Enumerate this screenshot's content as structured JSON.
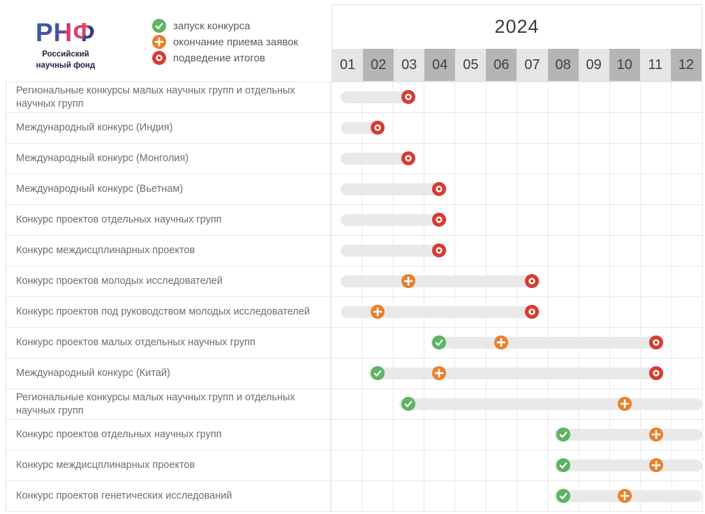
{
  "logo": {
    "letters": [
      "Р",
      "Н",
      "Ф"
    ],
    "org_line1": "Российский",
    "org_line2": "научный фонд"
  },
  "colors": {
    "accent_green": "#5cb464",
    "accent_orange": "#e8802d",
    "accent_red": "#d93a32",
    "bar": "#e9e9e9",
    "month_light": "#e6e6e6",
    "month_dark": "#b5b5b5",
    "grid_line": "#e6e6e6",
    "label_text": "#6e6e6e",
    "header_text": "#3f3f3f",
    "legend_text": "#5a5a5a",
    "logo_text": "#232246"
  },
  "chart_data": {
    "type": "bar",
    "subtype": "gantt-timeline",
    "title": "2024",
    "x_axis": {
      "unit": "month",
      "labels": [
        "01",
        "02",
        "03",
        "04",
        "05",
        "06",
        "07",
        "08",
        "09",
        "10",
        "11",
        "12"
      ],
      "range": [
        0,
        12
      ]
    },
    "legend": [
      {
        "id": "start",
        "label": "запуск конкурса",
        "color": "#5cb464",
        "symbol": "check"
      },
      {
        "id": "deadline",
        "label": "окончание приема заявок",
        "color": "#e8802d",
        "symbol": "plus"
      },
      {
        "id": "results",
        "label": "подведение итогов",
        "color": "#d93a32",
        "symbol": "ring"
      }
    ],
    "layout": {
      "legend_position": "top-left",
      "grid": true,
      "bar_color": "#e9e9e9"
    },
    "rows": [
      {
        "label": "Региональные конкурсы малых научных групп и отдельных научных групп",
        "bar_from": 0.32,
        "bar_to": 2.73,
        "events": [
          {
            "type": "results",
            "month": 3
          }
        ]
      },
      {
        "label": "Международный конкурс (Индия)",
        "bar_from": 0.32,
        "bar_to": 1.73,
        "events": [
          {
            "type": "results",
            "month": 2
          }
        ]
      },
      {
        "label": "Международный конкурс (Монголия)",
        "bar_from": 0.32,
        "bar_to": 2.73,
        "events": [
          {
            "type": "results",
            "month": 3
          }
        ]
      },
      {
        "label": "Международный конкурс (Вьетнам)",
        "bar_from": 0.32,
        "bar_to": 3.75,
        "events": [
          {
            "type": "results",
            "month": 4
          }
        ]
      },
      {
        "label": "Конкурс проектов отдельных научных групп",
        "bar_from": 0.32,
        "bar_to": 3.75,
        "events": [
          {
            "type": "results",
            "month": 4
          }
        ]
      },
      {
        "label": "Конкурс междисцплинарных проектов",
        "bar_from": 0.32,
        "bar_to": 3.75,
        "events": [
          {
            "type": "results",
            "month": 4
          }
        ]
      },
      {
        "label": "Конкурс проектов молодых исследователей",
        "bar_from": 0.32,
        "bar_to": 6.75,
        "events": [
          {
            "type": "deadline",
            "month": 3
          },
          {
            "type": "results",
            "month": 7
          }
        ]
      },
      {
        "label": "Конкурс проектов под руководством молодых исследователей",
        "bar_from": 0.32,
        "bar_to": 6.75,
        "events": [
          {
            "type": "deadline",
            "month": 2
          },
          {
            "type": "results",
            "month": 7
          }
        ]
      },
      {
        "label": "Конкурс проектов малых отдельных научных групп",
        "bar_from": 3.22,
        "bar_to": 10.75,
        "events": [
          {
            "type": "start",
            "month": 4
          },
          {
            "type": "deadline",
            "month": 6
          },
          {
            "type": "results",
            "month": 11
          }
        ]
      },
      {
        "label": "Международный конкурс (Китай)",
        "bar_from": 1.22,
        "bar_to": 10.75,
        "events": [
          {
            "type": "start",
            "month": 2
          },
          {
            "type": "deadline",
            "month": 4
          },
          {
            "type": "results",
            "month": 11
          }
        ]
      },
      {
        "label": "Региональные конкурсы малых научных групп и отдельных научных групп",
        "bar_from": 2.22,
        "bar_to": 12,
        "events": [
          {
            "type": "start",
            "month": 3
          },
          {
            "type": "deadline",
            "month": 10
          }
        ]
      },
      {
        "label": "Конкурс проектов отдельных научных групп",
        "bar_from": 7.22,
        "bar_to": 12,
        "events": [
          {
            "type": "start",
            "month": 8
          },
          {
            "type": "deadline",
            "month": 11
          }
        ]
      },
      {
        "label": "Конкурс междисцплинарных проектов",
        "bar_from": 7.22,
        "bar_to": 12,
        "events": [
          {
            "type": "start",
            "month": 8
          },
          {
            "type": "deadline",
            "month": 11
          }
        ]
      },
      {
        "label": "Конкурс проектов генетических исследований",
        "bar_from": 7.22,
        "bar_to": 12,
        "events": [
          {
            "type": "start",
            "month": 8
          },
          {
            "type": "deadline",
            "month": 10
          }
        ]
      }
    ]
  }
}
